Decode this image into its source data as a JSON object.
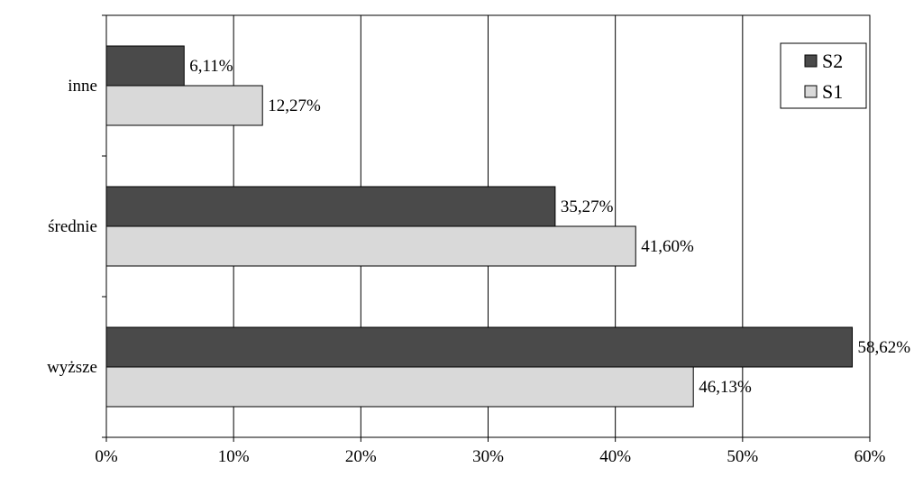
{
  "chart_data": {
    "type": "bar",
    "orientation": "horizontal",
    "categories": [
      "inne",
      "średnie",
      "wyższe"
    ],
    "series": [
      {
        "name": "S2",
        "values": [
          6.11,
          35.27,
          58.62
        ],
        "labels": [
          "6,11%",
          "35,27%",
          "58,62%"
        ],
        "color": "#4a4a4a"
      },
      {
        "name": "S1",
        "values": [
          12.27,
          41.6,
          46.13
        ],
        "labels": [
          "12,27%",
          "41,60%",
          "46,13%"
        ],
        "color": "#d9d9d9"
      }
    ],
    "x_ticks": [
      "0%",
      "10%",
      "20%",
      "30%",
      "40%",
      "50%",
      "60%"
    ],
    "xlim": [
      0,
      60
    ],
    "grid": "vertical",
    "legend_position": "top-right"
  }
}
